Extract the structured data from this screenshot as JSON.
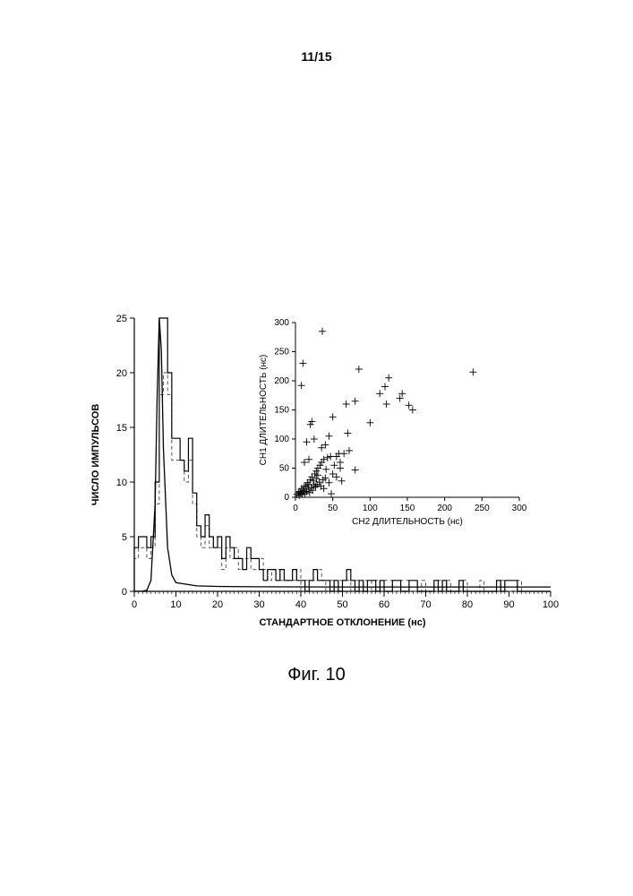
{
  "page_number": "11/15",
  "caption": "Фиг. 10",
  "main_chart": {
    "type": "histogram",
    "xlabel": "СТАНДАРТНОЕ ОТКЛОНЕНИЕ (нс)",
    "ylabel": "ЧИСЛО ИМПУЛЬСОВ",
    "label_fontsize": 11,
    "tick_fontsize": 11,
    "xlim": [
      0,
      100
    ],
    "ylim": [
      0,
      25
    ],
    "xticks": [
      0,
      10,
      20,
      30,
      40,
      50,
      60,
      70,
      80,
      90,
      100
    ],
    "yticks": [
      0,
      5,
      10,
      15,
      20,
      25
    ],
    "bin_width": 1,
    "background_color": "#ffffff",
    "axis_color": "#000000",
    "series_solid": {
      "color": "#000000",
      "line_width": 1.2,
      "dash": "none",
      "values": [
        4,
        5,
        5,
        4,
        5,
        10,
        25,
        25,
        20,
        14,
        14,
        12,
        11,
        14,
        9,
        6,
        5,
        7,
        5,
        4,
        5,
        3,
        5,
        4,
        3,
        3,
        2,
        4,
        3,
        3,
        2,
        1,
        2,
        2,
        1,
        2,
        1,
        1,
        2,
        1,
        1,
        0,
        1,
        2,
        1,
        1,
        1,
        0,
        1,
        0,
        1,
        2,
        1,
        0,
        1,
        0,
        1,
        1,
        0,
        1,
        0,
        0,
        1,
        1,
        0,
        0,
        1,
        1,
        0,
        0,
        0,
        0,
        1,
        0,
        1,
        0,
        0,
        0,
        1,
        0,
        0,
        0,
        0,
        0,
        0,
        0,
        0,
        1,
        0,
        1,
        1,
        1,
        0,
        0,
        0,
        0,
        0,
        0,
        0,
        0
      ]
    },
    "series_dashed": {
      "color": "#555555",
      "line_width": 1,
      "dash": "4,3",
      "values": [
        3,
        4,
        4,
        3,
        4,
        8,
        18,
        20,
        18,
        12,
        12,
        12,
        10,
        12,
        8,
        5,
        4,
        6,
        4,
        5,
        4,
        2,
        4,
        3,
        4,
        2,
        3,
        3,
        2,
        2,
        3,
        2,
        1,
        2,
        2,
        1,
        1,
        1,
        1,
        2,
        0,
        1,
        1,
        1,
        2,
        1,
        0,
        1,
        0,
        1,
        1,
        1,
        0,
        1,
        0,
        1,
        0,
        1,
        1,
        0,
        1,
        1,
        0,
        0,
        1,
        1,
        0,
        0,
        0,
        1,
        0,
        0,
        0,
        1,
        0,
        1,
        0,
        0,
        0,
        1,
        0,
        0,
        0,
        1,
        0,
        0,
        0,
        0,
        1,
        0,
        0,
        0,
        1,
        0,
        0,
        0,
        0,
        0,
        0,
        0
      ]
    },
    "fit_curve": {
      "color": "#000000",
      "line_width": 1.3,
      "peak_x": 6,
      "tail_const": 0.4,
      "points": [
        [
          0,
          0
        ],
        [
          2,
          0.02
        ],
        [
          3,
          0.1
        ],
        [
          4,
          1
        ],
        [
          5,
          8
        ],
        [
          5.5,
          18
        ],
        [
          6,
          25
        ],
        [
          6.5,
          22
        ],
        [
          7,
          13
        ],
        [
          8,
          4
        ],
        [
          9,
          1.5
        ],
        [
          10,
          0.8
        ],
        [
          15,
          0.5
        ],
        [
          20,
          0.45
        ],
        [
          30,
          0.42
        ],
        [
          50,
          0.4
        ],
        [
          70,
          0.4
        ],
        [
          90,
          0.4
        ],
        [
          100,
          0.4
        ]
      ]
    }
  },
  "inset_chart": {
    "type": "scatter",
    "xlabel": "CH2  ДЛИТЕЛЬНОСТЬ (нс)",
    "ylabel": "CH1  ДЛИТЕЛЬНОСТЬ (нс)",
    "label_fontsize": 10,
    "tick_fontsize": 10,
    "xlim": [
      0,
      300
    ],
    "ylim": [
      0,
      300
    ],
    "xticks": [
      0,
      50,
      100,
      150,
      200,
      250,
      300
    ],
    "yticks": [
      0,
      50,
      100,
      150,
      200,
      250,
      300
    ],
    "marker": "plus",
    "marker_size": 4,
    "marker_color": "#000000",
    "axis_color": "#000000",
    "points": [
      [
        2,
        5
      ],
      [
        4,
        8
      ],
      [
        5,
        3
      ],
      [
        6,
        10
      ],
      [
        7,
        7
      ],
      [
        8,
        15
      ],
      [
        9,
        5
      ],
      [
        10,
        12
      ],
      [
        11,
        9
      ],
      [
        12,
        18
      ],
      [
        13,
        6
      ],
      [
        14,
        20
      ],
      [
        15,
        10
      ],
      [
        16,
        25
      ],
      [
        17,
        14
      ],
      [
        18,
        22
      ],
      [
        19,
        8
      ],
      [
        20,
        30
      ],
      [
        21,
        16
      ],
      [
        22,
        35
      ],
      [
        23,
        12
      ],
      [
        24,
        28
      ],
      [
        25,
        20
      ],
      [
        26,
        40
      ],
      [
        27,
        18
      ],
      [
        28,
        45
      ],
      [
        29,
        22
      ],
      [
        30,
        50
      ],
      [
        32,
        26
      ],
      [
        33,
        55
      ],
      [
        34,
        19
      ],
      [
        35,
        60
      ],
      [
        37,
        30
      ],
      [
        38,
        65
      ],
      [
        40,
        33
      ],
      [
        41,
        48
      ],
      [
        43,
        68
      ],
      [
        45,
        25
      ],
      [
        47,
        70
      ],
      [
        50,
        40
      ],
      [
        52,
        55
      ],
      [
        55,
        35
      ],
      [
        58,
        75
      ],
      [
        60,
        50
      ],
      [
        12,
        60
      ],
      [
        15,
        95
      ],
      [
        18,
        65
      ],
      [
        20,
        125
      ],
      [
        25,
        100
      ],
      [
        8,
        192
      ],
      [
        10,
        230
      ],
      [
        22,
        130
      ],
      [
        35,
        85
      ],
      [
        36,
        285
      ],
      [
        40,
        90
      ],
      [
        45,
        105
      ],
      [
        50,
        138
      ],
      [
        55,
        70
      ],
      [
        60,
        60
      ],
      [
        65,
        75
      ],
      [
        68,
        160
      ],
      [
        70,
        110
      ],
      [
        72,
        80
      ],
      [
        80,
        165
      ],
      [
        85,
        220
      ],
      [
        100,
        128
      ],
      [
        113,
        178
      ],
      [
        120,
        190
      ],
      [
        122,
        160
      ],
      [
        125,
        205
      ],
      [
        140,
        170
      ],
      [
        143,
        178
      ],
      [
        152,
        158
      ],
      [
        157,
        150
      ],
      [
        238,
        215
      ],
      [
        48,
        6
      ],
      [
        80,
        47
      ],
      [
        62,
        28
      ],
      [
        30,
        38
      ],
      [
        38,
        15
      ],
      [
        28,
        32
      ]
    ]
  }
}
